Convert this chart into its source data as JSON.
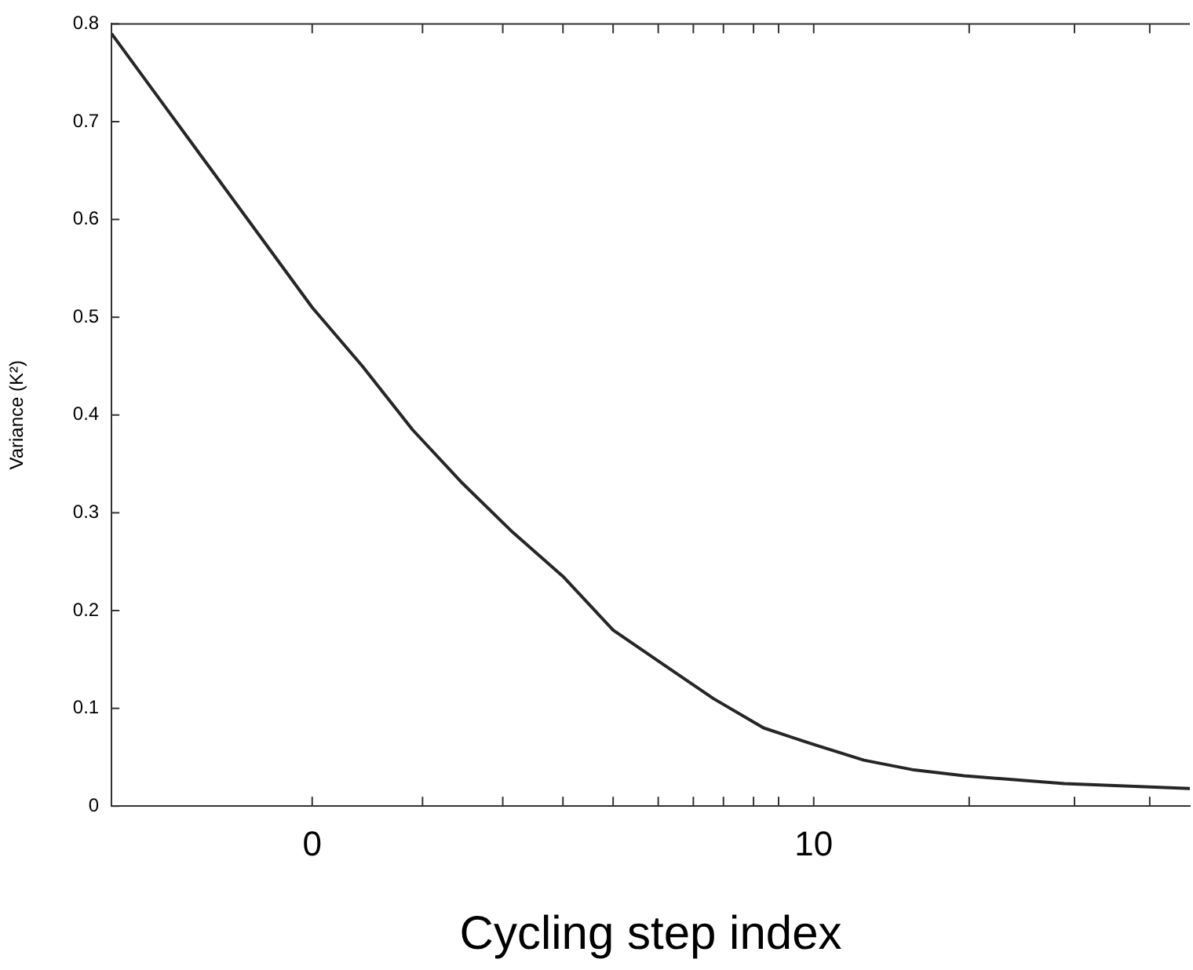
{
  "chart_data": {
    "type": "line",
    "xlabel": "Cycling step index",
    "ylabel": "Variance (K²)",
    "x": [
      -4,
      -3,
      -2,
      -1,
      0,
      1,
      2,
      3,
      4,
      5,
      6,
      7,
      8,
      9,
      10,
      11,
      12,
      13,
      14,
      15,
      16,
      17,
      17.5
    ],
    "series": [
      {
        "color": "#262626",
        "values": [
          0.79,
          0.72,
          0.65,
          0.58,
          0.51,
          0.45,
          0.385,
          0.33,
          0.28,
          0.235,
          0.18,
          0.145,
          0.11,
          0.08,
          0.063,
          0.047,
          0.037,
          0.031,
          0.027,
          0.023,
          0.021,
          0.019,
          0.018
        ]
      }
    ],
    "xlim": [
      -4,
      17.5
    ],
    "xticks": [
      {
        "value": 0,
        "label": "0"
      },
      {
        "value": 2.2,
        "label": null
      },
      {
        "value": 3.8,
        "label": null
      },
      {
        "value": 5,
        "label": null
      },
      {
        "value": 6,
        "label": null
      },
      {
        "value": 6.9,
        "label": null
      },
      {
        "value": 7.6,
        "label": null
      },
      {
        "value": 8.2,
        "label": null
      },
      {
        "value": 8.8,
        "label": null
      },
      {
        "value": 9.3,
        "label": null
      },
      {
        "value": 10,
        "label": "10"
      },
      {
        "value": 13.1,
        "label": null
      },
      {
        "value": 15.2,
        "label": null
      },
      {
        "value": 16.7,
        "label": null
      }
    ],
    "ylim": [
      0,
      0.8
    ],
    "yticks": [
      0,
      0.1,
      0.2,
      0.3,
      0.4,
      0.5,
      0.6,
      0.7,
      0.8
    ],
    "grid": false,
    "legend": false,
    "marker": "none",
    "line_style": "solid"
  }
}
